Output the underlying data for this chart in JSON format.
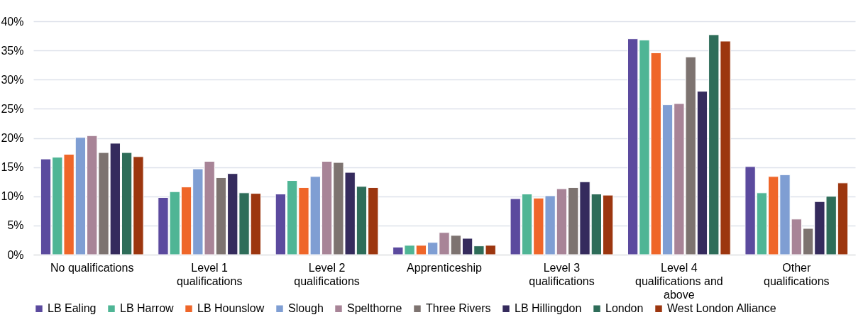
{
  "chart_data": {
    "type": "bar",
    "categories": [
      "No qualifications",
      "Level 1 qualifications",
      "Level 2 qualifications",
      "Apprenticeship",
      "Level 3 qualifications",
      "Level 4 qualifications and above",
      "Other qualifications"
    ],
    "series": [
      {
        "name": "LB Ealing",
        "color": "#5b4a9e",
        "values": [
          16.4,
          9.8,
          10.4,
          1.3,
          9.6,
          37.0,
          15.1
        ]
      },
      {
        "name": "LB Harrow",
        "color": "#4fb595",
        "values": [
          16.7,
          10.8,
          12.7,
          1.6,
          10.4,
          36.8,
          10.6
        ]
      },
      {
        "name": "LB Hounslow",
        "color": "#ef6629",
        "values": [
          17.2,
          11.6,
          11.5,
          1.6,
          9.7,
          34.6,
          13.4
        ]
      },
      {
        "name": "Slough",
        "color": "#7f9ed3",
        "values": [
          20.1,
          14.7,
          13.4,
          2.1,
          10.1,
          25.7,
          13.7
        ]
      },
      {
        "name": "Spelthorne",
        "color": "#a88497",
        "values": [
          20.4,
          16.0,
          16.0,
          3.8,
          11.3,
          25.9,
          6.1
        ]
      },
      {
        "name": "Three Rivers",
        "color": "#7d7370",
        "values": [
          17.5,
          13.2,
          15.8,
          3.3,
          11.5,
          33.9,
          4.5
        ]
      },
      {
        "name": "LB Hillingdon",
        "color": "#352b5d",
        "values": [
          19.1,
          13.9,
          14.1,
          2.8,
          12.5,
          28.0,
          9.1
        ]
      },
      {
        "name": "London",
        "color": "#2e6d59",
        "values": [
          17.5,
          10.6,
          11.7,
          1.5,
          10.4,
          37.7,
          10.0
        ]
      },
      {
        "name": "West London Alliance",
        "color": "#9c360f",
        "values": [
          16.8,
          10.5,
          11.5,
          1.6,
          10.2,
          36.6,
          12.3
        ]
      }
    ],
    "ylim": [
      0,
      40
    ],
    "yticks": [
      {
        "value": 0,
        "label": "0%"
      },
      {
        "value": 5,
        "label": "5%"
      },
      {
        "value": 10,
        "label": "10%"
      },
      {
        "value": 15,
        "label": "15%"
      },
      {
        "value": 20,
        "label": "20%"
      },
      {
        "value": 25,
        "label": "25%"
      },
      {
        "value": 30,
        "label": "30%"
      },
      {
        "value": 35,
        "label": "35%"
      },
      {
        "value": 40,
        "label": "40%"
      }
    ],
    "grid": "y",
    "legend": "bottom"
  }
}
